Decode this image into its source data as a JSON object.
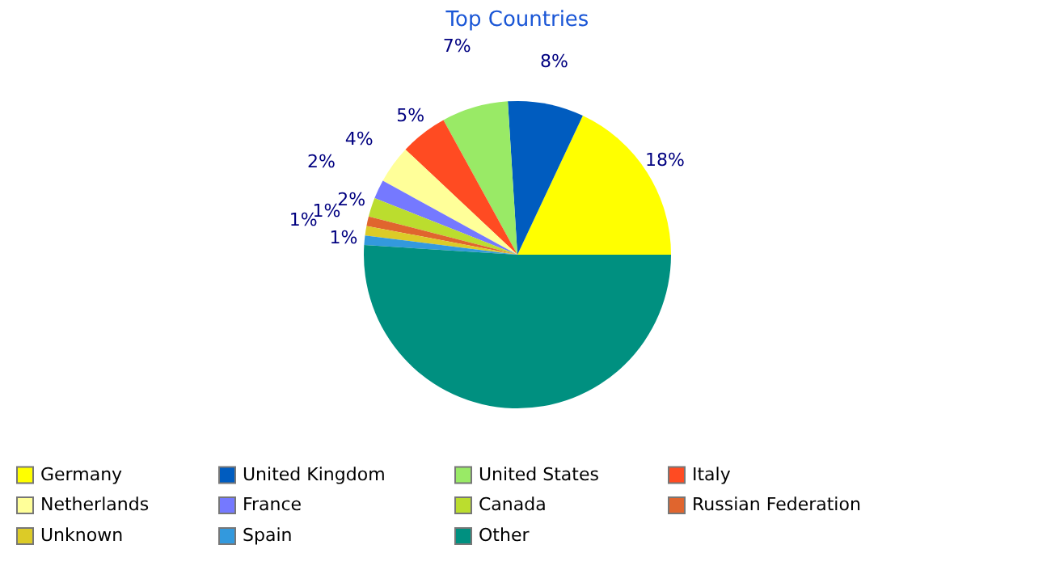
{
  "chart_data": {
    "type": "pie",
    "title": "Top Countries",
    "categories": [
      "Germany",
      "United Kingdom",
      "United States",
      "Italy",
      "Netherlands",
      "France",
      "Canada",
      "Russian Federation",
      "Unknown",
      "Spain",
      "Other"
    ],
    "values": [
      18,
      8,
      7,
      5,
      4,
      2,
      2,
      1,
      1,
      1,
      51
    ],
    "colors": [
      "#ffff00",
      "#005cbf",
      "#99ea66",
      "#ff4b22",
      "#ffff99",
      "#7579ff",
      "#bbdd2e",
      "#e0652e",
      "#dccb27",
      "#3399dd",
      "#009080"
    ],
    "value_labels": [
      "18%",
      "8%",
      "7%",
      "5%",
      "4%",
      "2%",
      "2%",
      "1%",
      "1%",
      "1%",
      null
    ],
    "legend": "bottom"
  }
}
